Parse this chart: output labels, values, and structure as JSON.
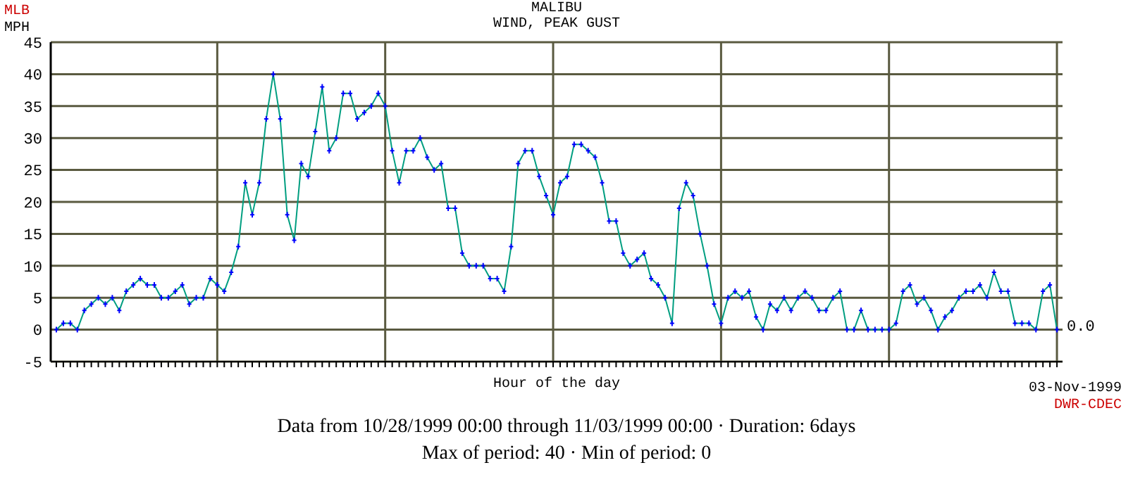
{
  "chart_data": {
    "type": "line",
    "title": "MALIBU",
    "subtitle": "WIND, PEAK GUST",
    "xlabel": "Hour of the day",
    "ylabel": "MPH",
    "annotations": [
      "MLB",
      "0.0",
      "03-Nov-1999",
      "DWR-CDEC",
      "Data from 10/28/1999 00:00 through 11/03/1999 00:00  ·  Duration: 6days",
      "Max of period: 40  ·  Min of period: 0"
    ],
    "categories": [
      null,
      null,
      null,
      null,
      null,
      null,
      null,
      null,
      null,
      null,
      null,
      null,
      null,
      null,
      null,
      null,
      null,
      null,
      null,
      null,
      null,
      null,
      null,
      null,
      null,
      null,
      null,
      null,
      null,
      null,
      null,
      null,
      null,
      null,
      null,
      null,
      null,
      null,
      null,
      null,
      null,
      null,
      null,
      null,
      null,
      null,
      null,
      null,
      null,
      null,
      null,
      null,
      null,
      null,
      null,
      null,
      null,
      null,
      null,
      null,
      null,
      null,
      null,
      null,
      null,
      null,
      null,
      null,
      null,
      null,
      null,
      null,
      null,
      null,
      null,
      null,
      null,
      null,
      null,
      null,
      null,
      null,
      null,
      null,
      null,
      null,
      null,
      null,
      null,
      null,
      null,
      null,
      null,
      null,
      null,
      null,
      null,
      null,
      null,
      null,
      null,
      null,
      null,
      null,
      null,
      null,
      null,
      null,
      null,
      null,
      null,
      null,
      null,
      null,
      null,
      null,
      null,
      null,
      null,
      null,
      null,
      null,
      null,
      null,
      null,
      null,
      null,
      null,
      null,
      null,
      null,
      null,
      null,
      null,
      null,
      null,
      null,
      null,
      null,
      null,
      null,
      null,
      null,
      null
    ],
    "series": [
      {
        "color": "#009e80",
        "values": [
          0,
          1,
          1,
          0,
          3,
          4,
          5,
          4,
          5,
          3,
          6,
          7,
          8,
          7,
          7,
          5,
          5,
          6,
          7,
          4,
          5,
          5,
          8,
          7,
          6,
          9,
          13,
          23,
          18,
          23,
          33,
          40,
          33,
          18,
          14,
          26,
          24,
          31,
          38,
          28,
          30,
          37,
          37,
          33,
          34,
          35,
          37,
          35,
          28,
          23,
          28,
          28,
          30,
          27,
          25,
          26,
          19,
          19,
          12,
          10,
          10,
          10,
          8,
          8,
          6,
          13,
          26,
          28,
          28,
          24,
          21,
          18,
          23,
          24,
          29,
          29,
          28,
          27,
          23,
          17,
          17,
          12,
          10,
          11,
          12,
          8,
          7,
          5,
          1,
          19,
          23,
          21,
          15,
          10,
          4,
          1,
          5,
          6,
          5,
          6,
          2,
          0,
          4,
          3,
          5,
          3,
          5,
          6,
          5,
          3,
          3,
          5,
          6,
          0,
          0,
          3,
          0,
          0,
          0,
          0,
          1,
          6,
          7,
          4,
          5,
          3,
          0,
          2,
          3,
          5,
          6,
          6,
          7,
          5,
          9,
          6,
          6,
          1,
          1,
          1,
          0,
          6,
          7,
          0
        ]
      }
    ],
    "ylim": [
      -5,
      45
    ],
    "yticks": [
      -5,
      0,
      5,
      10,
      15,
      20,
      25,
      30,
      35,
      40,
      45
    ],
    "tick_labels": "y",
    "grid": true,
    "marker": "cross"
  }
}
